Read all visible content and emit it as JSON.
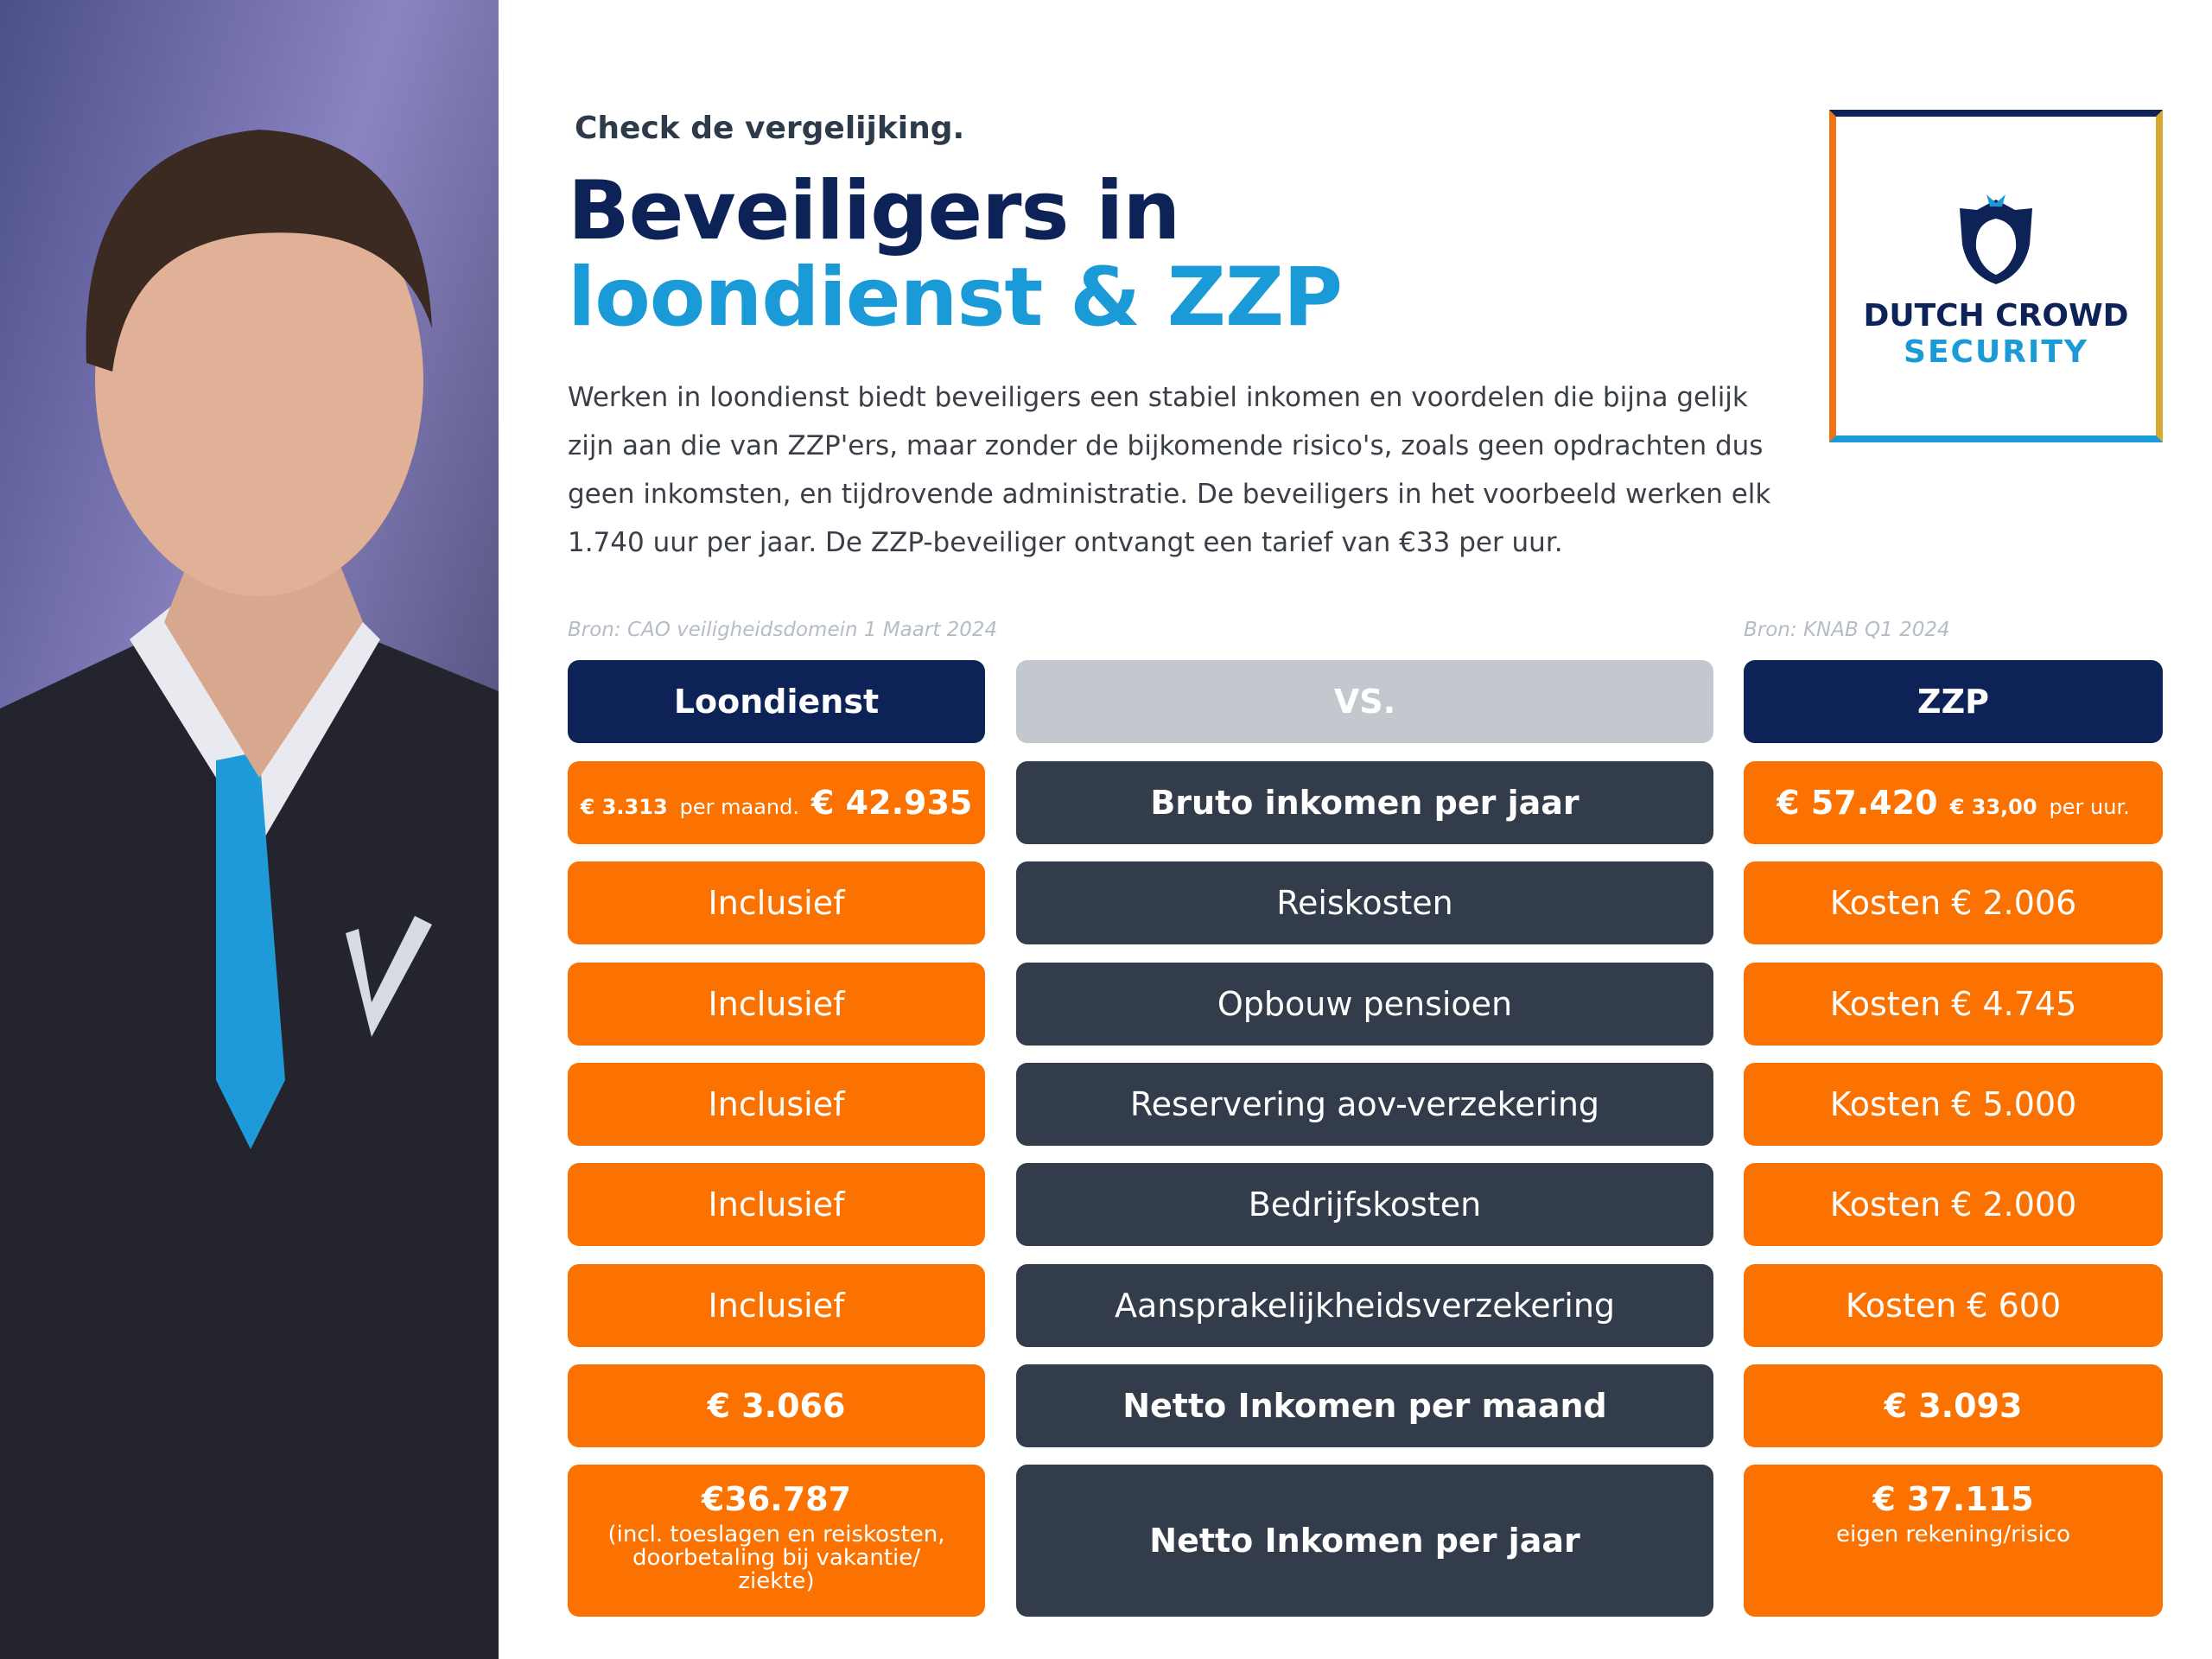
{
  "intro": {
    "kicker": "Check de vergelijking.",
    "title_line1": "Beveiligers in",
    "title_line2": "loondienst & ZZP",
    "body": "Werken in loondienst biedt beveiligers een stabiel inkomen en voordelen die bijna gelijk zijn aan die van ZZP'ers, maar zonder de bijkomende risico's, zoals geen opdrachten dus geen inkomsten, en tijdrovende administratie. De beveiligers in het voorbeeld werken elk 1.740 uur per jaar. De ZZP-beveiliger ontvangt een tarief van €33 per uur."
  },
  "logo": {
    "line1": "DUTCH CROWD",
    "line2": "SECURITY"
  },
  "sources": {
    "left": "Bron: CAO veiligheidsdomein 1 Maart 2024",
    "right": "Bron: KNAB Q1 2024"
  },
  "table": {
    "header": [
      "Loondienst",
      "VS.",
      "ZZP"
    ],
    "rows": [
      {
        "left": {
          "amount": "€ 3.313",
          "unit": "per maand.",
          "total": "€ 42.935"
        },
        "label": "Bruto inkomen per jaar",
        "right": {
          "total": "€ 57.420",
          "amount": "€ 33,00",
          "unit": "per uur."
        }
      },
      {
        "left": "Inclusief",
        "label": "Reiskosten",
        "right": "Kosten € 2.006"
      },
      {
        "left": "Inclusief",
        "label": "Opbouw pensioen",
        "right": "Kosten € 4.745"
      },
      {
        "left": "Inclusief",
        "label": "Reservering aov-verzekering",
        "right": "Kosten € 5.000"
      },
      {
        "left": "Inclusief",
        "label": "Bedrijfskosten",
        "right": "Kosten € 2.000"
      },
      {
        "left": "Inclusief",
        "label": "Aansprakelijkheidsverzekering",
        "right": "Kosten € 600"
      },
      {
        "left": "€ 3.066",
        "label": "Netto Inkomen per maand",
        "right": "€ 3.093"
      },
      {
        "left": {
          "total": "€36.787",
          "note": "(incl. toeslagen en reiskosten, doorbetaling bij vakantie/ ziekte)"
        },
        "label": "Netto Inkomen per jaar",
        "right": {
          "total": "€ 37.115",
          "note": "eigen rekening/risico"
        }
      }
    ]
  }
}
